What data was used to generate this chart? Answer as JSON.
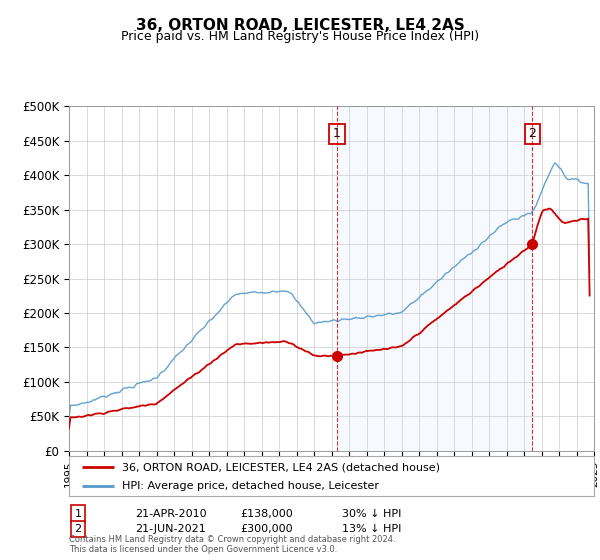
{
  "title": "36, ORTON ROAD, LEICESTER, LE4 2AS",
  "subtitle": "Price paid vs. HM Land Registry's House Price Index (HPI)",
  "legend_line1": "36, ORTON ROAD, LEICESTER, LE4 2AS (detached house)",
  "legend_line2": "HPI: Average price, detached house, Leicester",
  "annotation1": {
    "label": "1",
    "date": "21-APR-2010",
    "price": "£138,000",
    "note": "30% ↓ HPI"
  },
  "annotation2": {
    "label": "2",
    "date": "21-JUN-2021",
    "price": "£300,000",
    "note": "13% ↓ HPI"
  },
  "footnote": "Contains HM Land Registry data © Crown copyright and database right 2024.\nThis data is licensed under the Open Government Licence v3.0.",
  "price_color": "#cc0000",
  "hpi_color": "#5599cc",
  "shade_color": "#ddeeff",
  "vline_color": "#cc0000",
  "background_color": "#ffffff",
  "ylim": [
    0,
    500000
  ],
  "yticks": [
    0,
    50000,
    100000,
    150000,
    200000,
    250000,
    300000,
    350000,
    400000,
    450000,
    500000
  ],
  "sale1_x": 2010.31,
  "sale1_y": 138000,
  "sale2_x": 2021.47,
  "sale2_y": 300000,
  "xmin": 1995,
  "xmax": 2025
}
